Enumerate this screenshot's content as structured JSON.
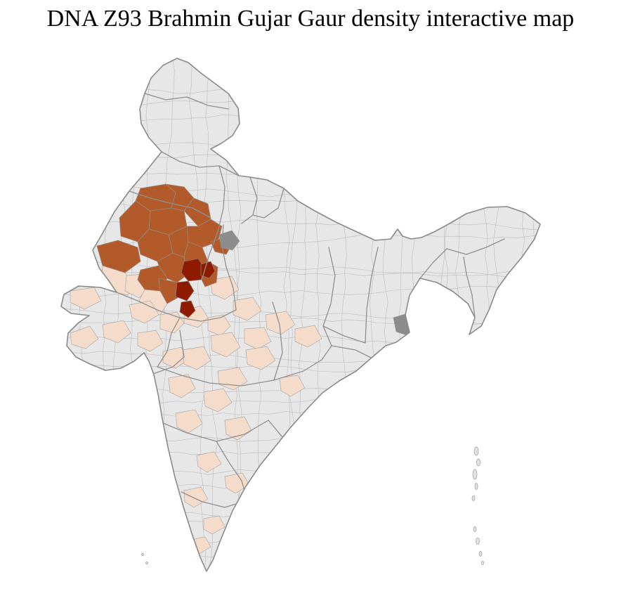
{
  "page": {
    "title": "DNA Z93 Brahmin Gujar Gaur density interactive map"
  },
  "map": {
    "type": "choropleth",
    "region": "India districts",
    "colors": {
      "background": "#ffffff",
      "base": "#e7e7e7",
      "district_border": "#b4b4b4",
      "state_border": "#8f8f8f",
      "outline": "#8a8a8a",
      "low": "#f5dcca",
      "medium": "#b35a2b",
      "high": "#8e1b00",
      "neutral_dark": "#8c8c8c"
    },
    "density_levels": [
      {
        "level": "none",
        "color": "#e7e7e7"
      },
      {
        "level": "low",
        "color": "#f5dcca"
      },
      {
        "level": "medium",
        "color": "#b35a2b"
      },
      {
        "level": "high",
        "color": "#8e1b00"
      }
    ]
  }
}
